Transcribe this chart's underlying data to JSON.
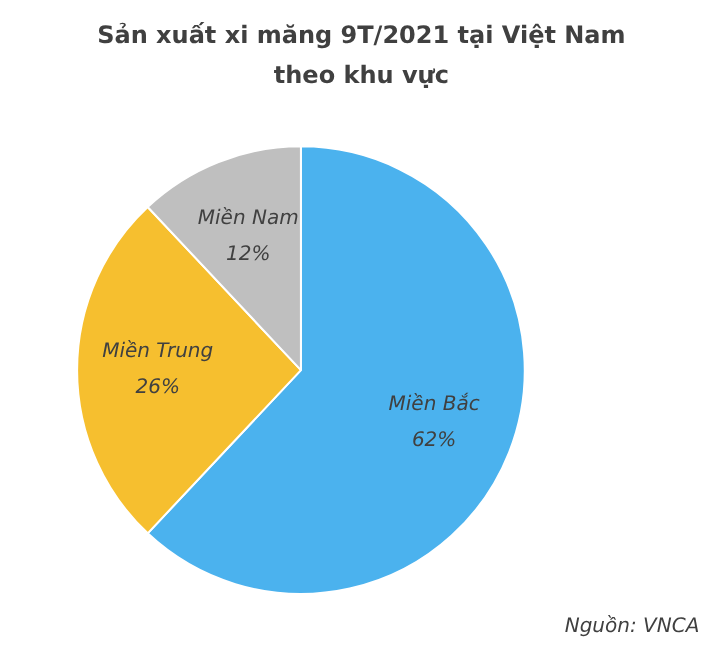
{
  "chart_data": {
    "type": "pie",
    "title": "Sản xuất xi măng 9T/2021 tại Việt Nam theo khu vực",
    "categories": [
      "Miền Bắc",
      "Miền Trung",
      "Miền Nam"
    ],
    "values": [
      62,
      26,
      12
    ],
    "value_labels": [
      "62%",
      "26%",
      "12%"
    ],
    "colors": [
      "#4bb2ee",
      "#f6bf2f",
      "#bfbfbf"
    ],
    "annotations": [
      "Nguồn: VNCA"
    ]
  }
}
